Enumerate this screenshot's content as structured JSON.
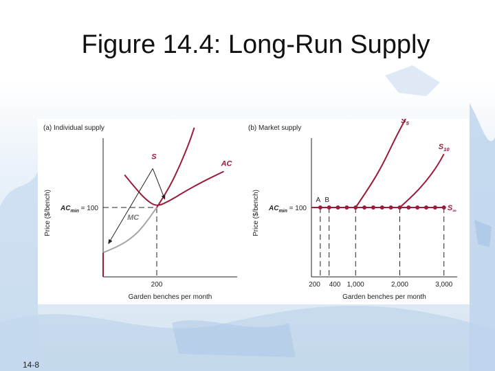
{
  "slide": {
    "title": "Figure 14.4: Long-Run Supply",
    "number": "14-8"
  },
  "colors": {
    "curve": "#9b1b3a",
    "mc": "#a5a5a5",
    "axis": "#222222",
    "dash": "#222222",
    "background_blue": "#c9dcee"
  },
  "chart_data": [
    {
      "type": "line",
      "panel_title": "(a) Individual supply",
      "xlabel": "Garden benches per month",
      "ylabel": "Price ($/bench)",
      "xlim": [
        0,
        500
      ],
      "ylim": [
        0,
        200
      ],
      "x_ticks": [
        {
          "value": 200,
          "label": "200"
        }
      ],
      "y_ticks": [
        {
          "value": 100,
          "label_bold": "AC",
          "label_sub": "min",
          "label_rest": " = 100"
        }
      ],
      "series": [
        {
          "name": "AC",
          "color_key": "curve",
          "x": [
            80,
            120,
            160,
            200,
            250,
            300,
            370,
            450
          ],
          "y": [
            147,
            128,
            111,
            101,
            110,
            122,
            137,
            152
          ]
        },
        {
          "name": "MC",
          "color_key": "mc",
          "x": [
            0,
            60,
            120,
            160,
            200
          ],
          "y": [
            35,
            44,
            60,
            78,
            100
          ]
        },
        {
          "name": "S",
          "color_key": "curve",
          "x": [
            0,
            0,
            200,
            240,
            280,
            320,
            340
          ],
          "y": [
            0,
            35,
            100,
            124,
            155,
            192,
            215
          ]
        }
      ],
      "curve_labels": [
        {
          "text": "S",
          "x": 180,
          "y": 170
        },
        {
          "text": "AC",
          "x": 440,
          "y": 160
        },
        {
          "text": "MC",
          "x": 90,
          "y": 82
        }
      ],
      "annotations": [
        {
          "type": "arrow",
          "from": [
            180,
            160
          ],
          "to": [
            230,
            112
          ]
        },
        {
          "type": "arrow",
          "from": [
            180,
            160
          ],
          "to": [
            20,
            48
          ]
        }
      ]
    },
    {
      "type": "line",
      "panel_title": "(b) Market supply",
      "xlabel": "Garden benches per month",
      "ylabel": "Price ($/bench)",
      "xlim": [
        0,
        3300
      ],
      "ylim": [
        0,
        200
      ],
      "x_ticks": [
        {
          "value": 200,
          "label": "200"
        },
        {
          "value": 400,
          "label": "400"
        },
        {
          "value": 1000,
          "label": "1,000"
        },
        {
          "value": 2000,
          "label": "2,000"
        },
        {
          "value": 3000,
          "label": "3,000"
        }
      ],
      "y_ticks": [
        {
          "value": 100,
          "label_bold": "AC",
          "label_sub": "min",
          "label_rest": " = 100"
        }
      ],
      "points_labels": [
        {
          "text": "A",
          "x": 200
        },
        {
          "text": "B",
          "x": 400
        }
      ],
      "series": [
        {
          "name": "S5",
          "label_main": "S",
          "label_sub": "5",
          "color_key": "curve",
          "x": [
            1000,
            1300,
            1600,
            1900,
            2150
          ],
          "y": [
            100,
            128,
            160,
            200,
            230
          ]
        },
        {
          "name": "S10",
          "label_main": "S",
          "label_sub": "10",
          "color_key": "curve",
          "x": [
            2000,
            2300,
            2600,
            2850,
            3000
          ],
          "y": [
            100,
            117,
            138,
            160,
            177
          ]
        },
        {
          "name": "S∞",
          "label_main": "S",
          "label_sub": "∞",
          "color_key": "curve",
          "x": [
            0,
            3000
          ],
          "y": [
            100,
            100
          ]
        }
      ],
      "dots_x": [
        200,
        400,
        600,
        800,
        1000,
        1200,
        1400,
        1600,
        1800,
        2000,
        2200,
        2400,
        2600,
        2800,
        3000
      ],
      "dots_y": 100
    }
  ]
}
